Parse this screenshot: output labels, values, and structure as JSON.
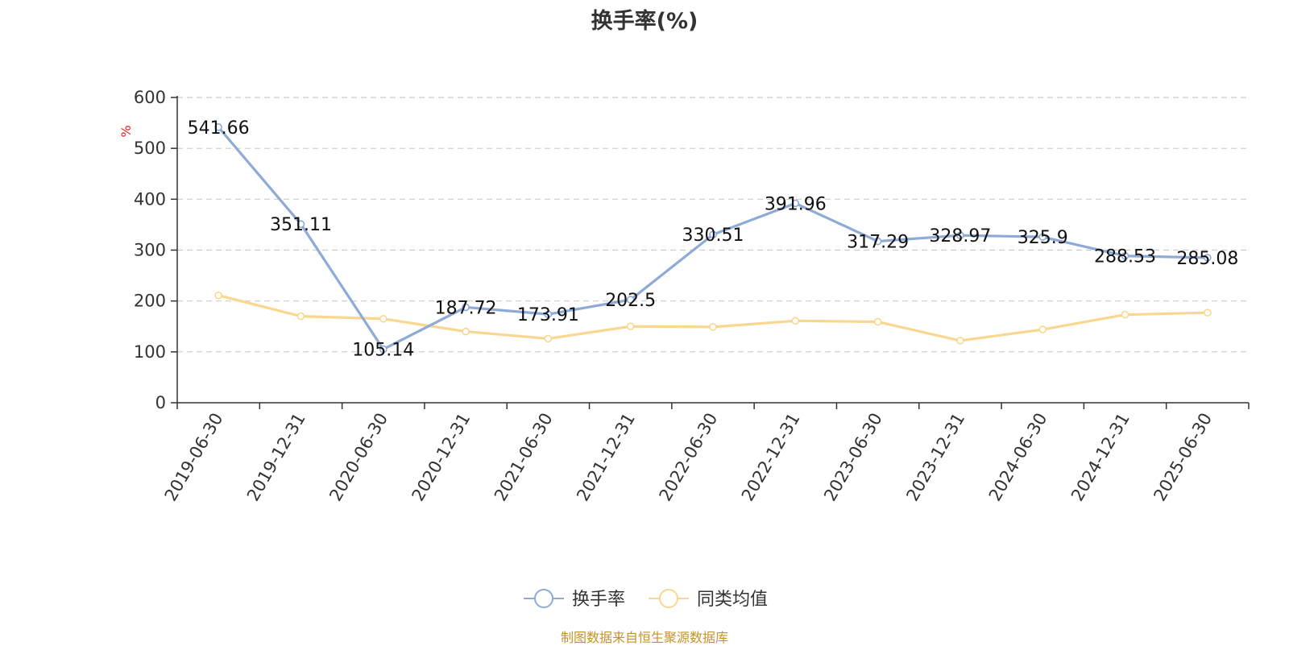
{
  "chart_data": {
    "type": "line",
    "title": "换手率(%)",
    "ylabel": "%",
    "categories": [
      "2019-06-30",
      "2019-12-31",
      "2020-06-30",
      "2020-12-31",
      "2021-06-30",
      "2021-12-31",
      "2022-06-30",
      "2022-12-31",
      "2023-06-30",
      "2023-12-31",
      "2024-06-30",
      "2024-12-31",
      "2025-06-30"
    ],
    "series": [
      {
        "name": "换手率",
        "color": "#8eaad6",
        "show_labels": true,
        "values": [
          541.66,
          351.11,
          105.14,
          187.72,
          173.91,
          202.5,
          330.51,
          391.96,
          317.29,
          328.97,
          325.9,
          288.53,
          285.08
        ]
      },
      {
        "name": "同类均值",
        "color": "#fad78f",
        "show_labels": false,
        "values": [
          211,
          170,
          165,
          140,
          126,
          150,
          149,
          161,
          159,
          122,
          144,
          173,
          177
        ]
      }
    ],
    "ylim": [
      0,
      600
    ],
    "yticks": [
      0,
      100,
      200,
      300,
      400,
      500,
      600
    ],
    "grid": true,
    "legend_position": "bottom-center",
    "footer": "制图数据来自恒生聚源数据库"
  }
}
